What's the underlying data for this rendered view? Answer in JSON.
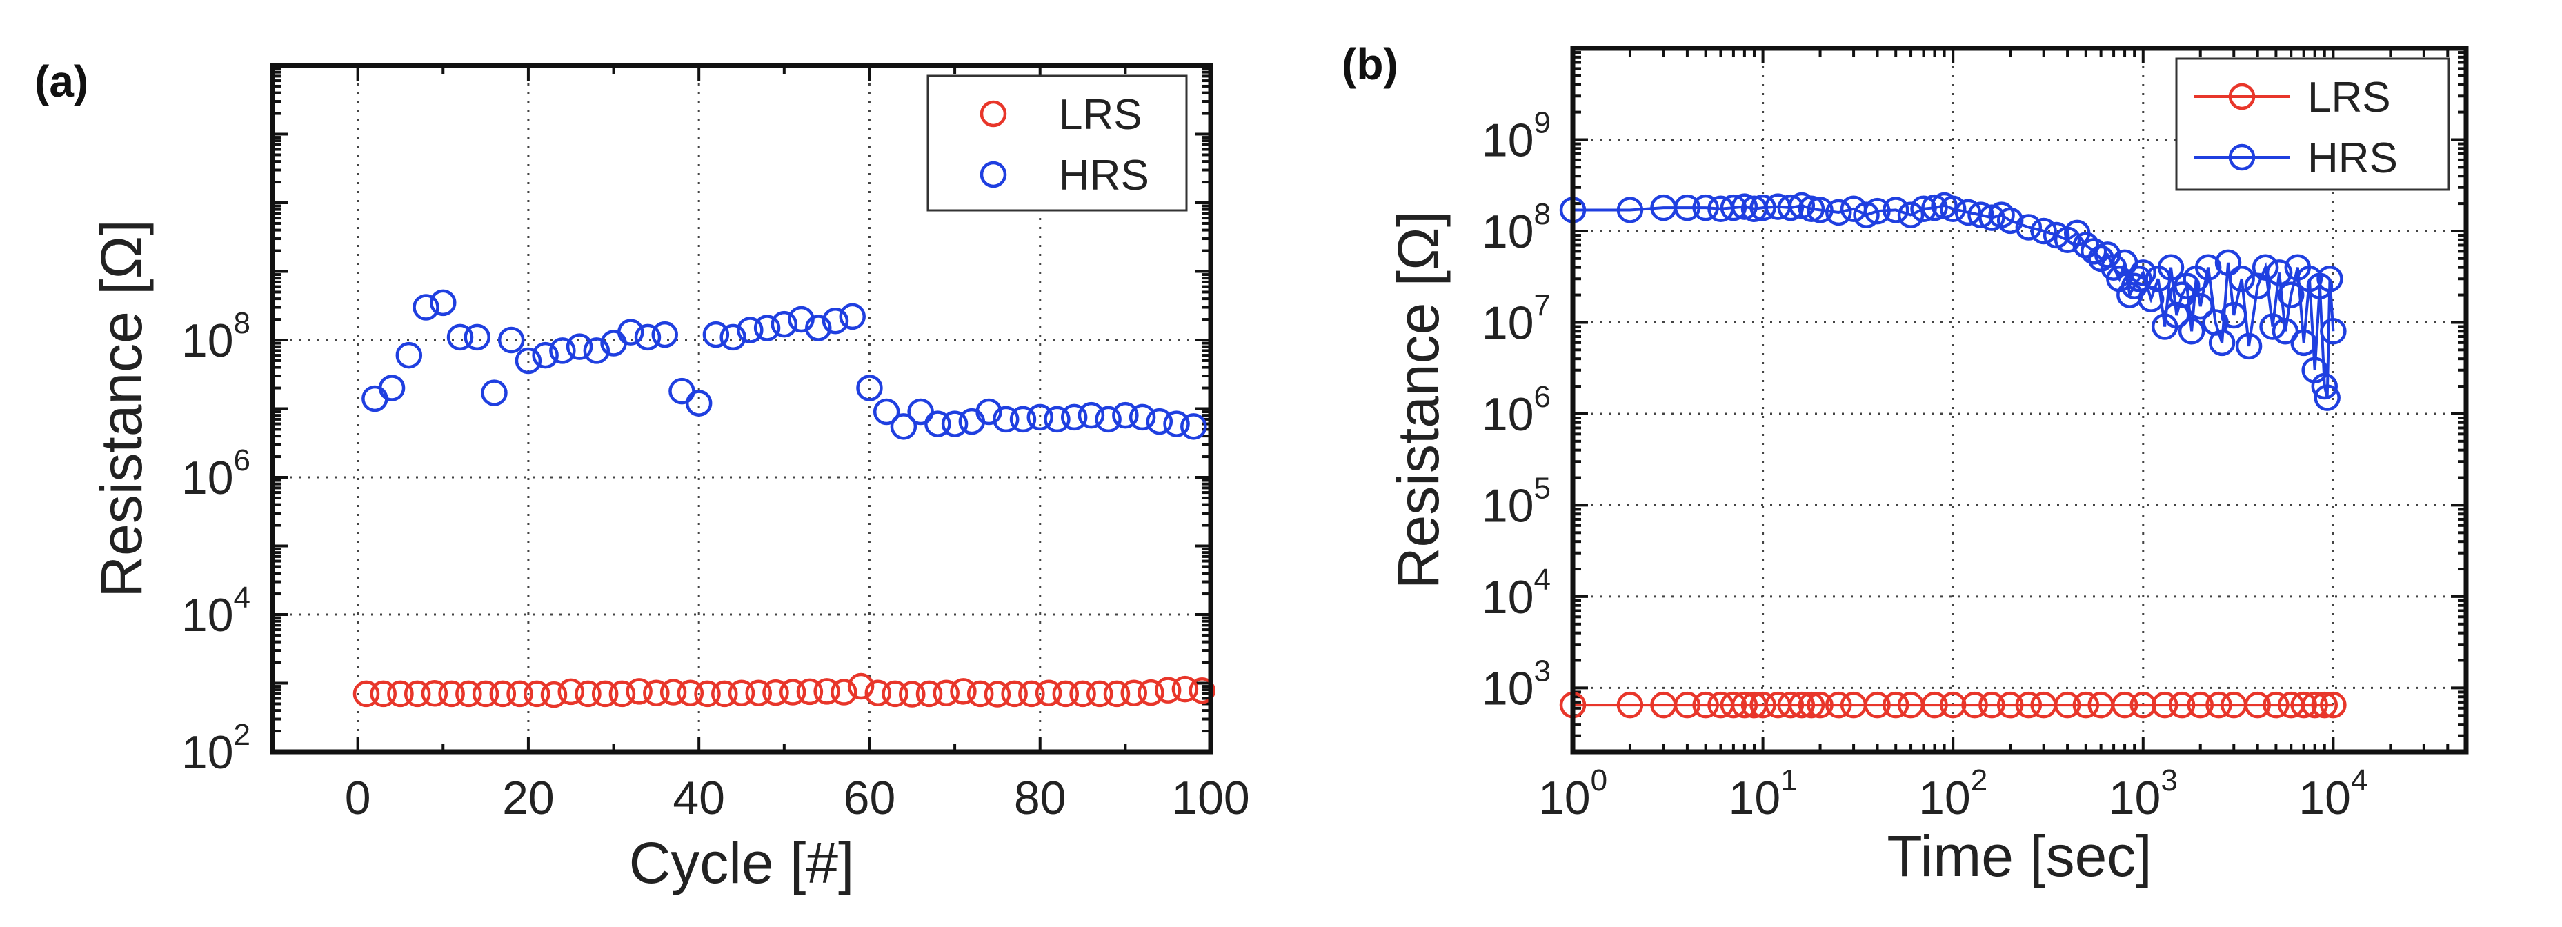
{
  "chart_data": [
    {
      "type": "scatter",
      "panel_label": "(a)",
      "xlabel": "Cycle [#]",
      "ylabel": "Resistance [Ω]",
      "x_scale": "linear",
      "y_scale": "log",
      "xlim": [
        -10,
        100
      ],
      "ylim": [
        100,
        1000000000000
      ],
      "x_ticks": [
        0,
        20,
        40,
        60,
        80,
        100
      ],
      "x_tick_labels": [
        "0",
        "20",
        "40",
        "60",
        "80",
        "100"
      ],
      "y_ticks": [
        100,
        10000,
        1000000,
        100000000
      ],
      "y_tick_base": [
        "10",
        "10",
        "10",
        "10"
      ],
      "y_tick_exp": [
        "2",
        "4",
        "6",
        "8"
      ],
      "grid": true,
      "legend_position": "top-right",
      "series": [
        {
          "name": "LRS",
          "color": "#e8362a",
          "marker": "open-circle",
          "x": [
            1,
            3,
            5,
            7,
            9,
            11,
            13,
            15,
            17,
            19,
            21,
            23,
            25,
            27,
            29,
            31,
            33,
            35,
            37,
            39,
            41,
            43,
            45,
            47,
            49,
            51,
            53,
            55,
            57,
            59,
            61,
            63,
            65,
            67,
            69,
            71,
            73,
            75,
            77,
            79,
            81,
            83,
            85,
            87,
            89,
            91,
            93,
            95,
            97,
            99
          ],
          "y": [
            700,
            700,
            700,
            700,
            710,
            700,
            700,
            700,
            700,
            700,
            700,
            680,
            750,
            700,
            700,
            700,
            760,
            720,
            740,
            720,
            700,
            700,
            720,
            720,
            730,
            740,
            750,
            760,
            740,
            900,
            720,
            700,
            690,
            700,
            720,
            760,
            700,
            690,
            700,
            700,
            720,
            700,
            700,
            700,
            700,
            720,
            730,
            790,
            820,
            780
          ]
        },
        {
          "name": "HRS",
          "color": "#1f3fe0",
          "marker": "open-circle",
          "x": [
            2,
            4,
            6,
            8,
            10,
            12,
            14,
            16,
            18,
            20,
            22,
            24,
            26,
            28,
            30,
            32,
            34,
            36,
            38,
            40,
            42,
            44,
            46,
            48,
            50,
            52,
            54,
            56,
            58,
            60,
            62,
            64,
            66,
            68,
            70,
            72,
            74,
            76,
            78,
            80,
            82,
            84,
            86,
            88,
            90,
            92,
            94,
            96,
            98
          ],
          "y": [
            14000000,
            20000000,
            60000000,
            300000000,
            350000000,
            110000000,
            110000000,
            17000000,
            100000000,
            50000000,
            60000000,
            70000000,
            80000000,
            70000000,
            90000000,
            130000000,
            110000000,
            120000000,
            18000000,
            12000000,
            120000000,
            110000000,
            140000000,
            150000000,
            170000000,
            200000000,
            150000000,
            190000000,
            220000000,
            20000000,
            9000000,
            5500000,
            9000000,
            6000000,
            6000000,
            6500000,
            9000000,
            7000000,
            7000000,
            7500000,
            7000000,
            7500000,
            8000000,
            7000000,
            8000000,
            7500000,
            6500000,
            6000000,
            5500000
          ]
        }
      ]
    },
    {
      "type": "line",
      "panel_label": "(b)",
      "xlabel": "Time [sec]",
      "ylabel": "Resistance [Ω]",
      "x_scale": "log",
      "y_scale": "log",
      "xlim": [
        1,
        50000
      ],
      "ylim": [
        200,
        10000000000
      ],
      "x_ticks": [
        1,
        10,
        100,
        1000,
        10000
      ],
      "x_tick_base": [
        "10",
        "10",
        "10",
        "10",
        "10"
      ],
      "x_tick_exp": [
        "0",
        "1",
        "2",
        "3",
        "4"
      ],
      "y_ticks": [
        1000,
        10000,
        100000,
        1000000,
        10000000,
        100000000,
        1000000000
      ],
      "y_tick_base": [
        "10",
        "10",
        "10",
        "10",
        "10",
        "10",
        "10"
      ],
      "y_tick_exp": [
        "3",
        "4",
        "5",
        "6",
        "7",
        "8",
        "9"
      ],
      "grid": true,
      "legend_position": "top-right",
      "series": [
        {
          "name": "LRS",
          "color": "#e8362a",
          "marker": "open-circle-line",
          "x": [
            1,
            2,
            3,
            4,
            5,
            6,
            7,
            8,
            9,
            10,
            12,
            14,
            16,
            18,
            20,
            25,
            30,
            40,
            50,
            60,
            80,
            100,
            130,
            160,
            200,
            250,
            300,
            400,
            500,
            600,
            800,
            1000,
            1300,
            1600,
            2000,
            2500,
            3000,
            4000,
            5000,
            6000,
            7000,
            8000,
            9000,
            10000
          ],
          "y": [
            650,
            650,
            650,
            650,
            650,
            650,
            650,
            650,
            650,
            650,
            650,
            650,
            650,
            650,
            650,
            650,
            650,
            650,
            650,
            650,
            650,
            650,
            650,
            650,
            650,
            650,
            650,
            650,
            650,
            650,
            650,
            650,
            650,
            650,
            650,
            650,
            650,
            650,
            650,
            650,
            650,
            650,
            650,
            650
          ]
        },
        {
          "name": "HRS",
          "color": "#1f3fe0",
          "marker": "open-circle-line",
          "x": [
            1,
            2,
            3,
            4,
            5,
            6,
            7,
            8,
            9,
            10,
            12,
            14,
            16,
            18,
            20,
            25,
            30,
            35,
            40,
            50,
            60,
            70,
            80,
            90,
            100,
            120,
            140,
            160,
            180,
            200,
            250,
            300,
            350,
            400,
            450,
            500,
            550,
            600,
            650,
            700,
            750,
            800,
            850,
            900,
            950,
            1000,
            1100,
            1200,
            1300,
            1400,
            1500,
            1600,
            1700,
            1800,
            1900,
            2000,
            2200,
            2400,
            2600,
            2800,
            3000,
            3300,
            3600,
            4000,
            4400,
            4800,
            5200,
            5600,
            6000,
            6500,
            7000,
            7500,
            8000,
            8500,
            9000,
            9300,
            9600,
            10000
          ],
          "y": [
            170000000,
            170000000,
            180000000,
            180000000,
            180000000,
            175000000,
            180000000,
            185000000,
            175000000,
            180000000,
            185000000,
            180000000,
            190000000,
            175000000,
            170000000,
            160000000,
            175000000,
            150000000,
            165000000,
            170000000,
            150000000,
            175000000,
            180000000,
            190000000,
            175000000,
            160000000,
            150000000,
            140000000,
            150000000,
            130000000,
            110000000,
            100000000,
            90000000,
            80000000,
            95000000,
            70000000,
            60000000,
            50000000,
            55000000,
            40000000,
            30000000,
            45000000,
            20000000,
            25000000,
            30000000,
            35000000,
            18000000,
            30000000,
            9000000,
            40000000,
            12000000,
            20000000,
            25000000,
            8000000,
            30000000,
            15000000,
            40000000,
            10000000,
            6000000,
            45000000,
            12000000,
            30000000,
            5500000,
            25000000,
            40000000,
            9000000,
            35000000,
            8000000,
            20000000,
            40000000,
            6000000,
            30000000,
            3000000,
            25000000,
            2000000,
            1500000,
            30000000,
            8000000
          ]
        }
      ]
    }
  ]
}
